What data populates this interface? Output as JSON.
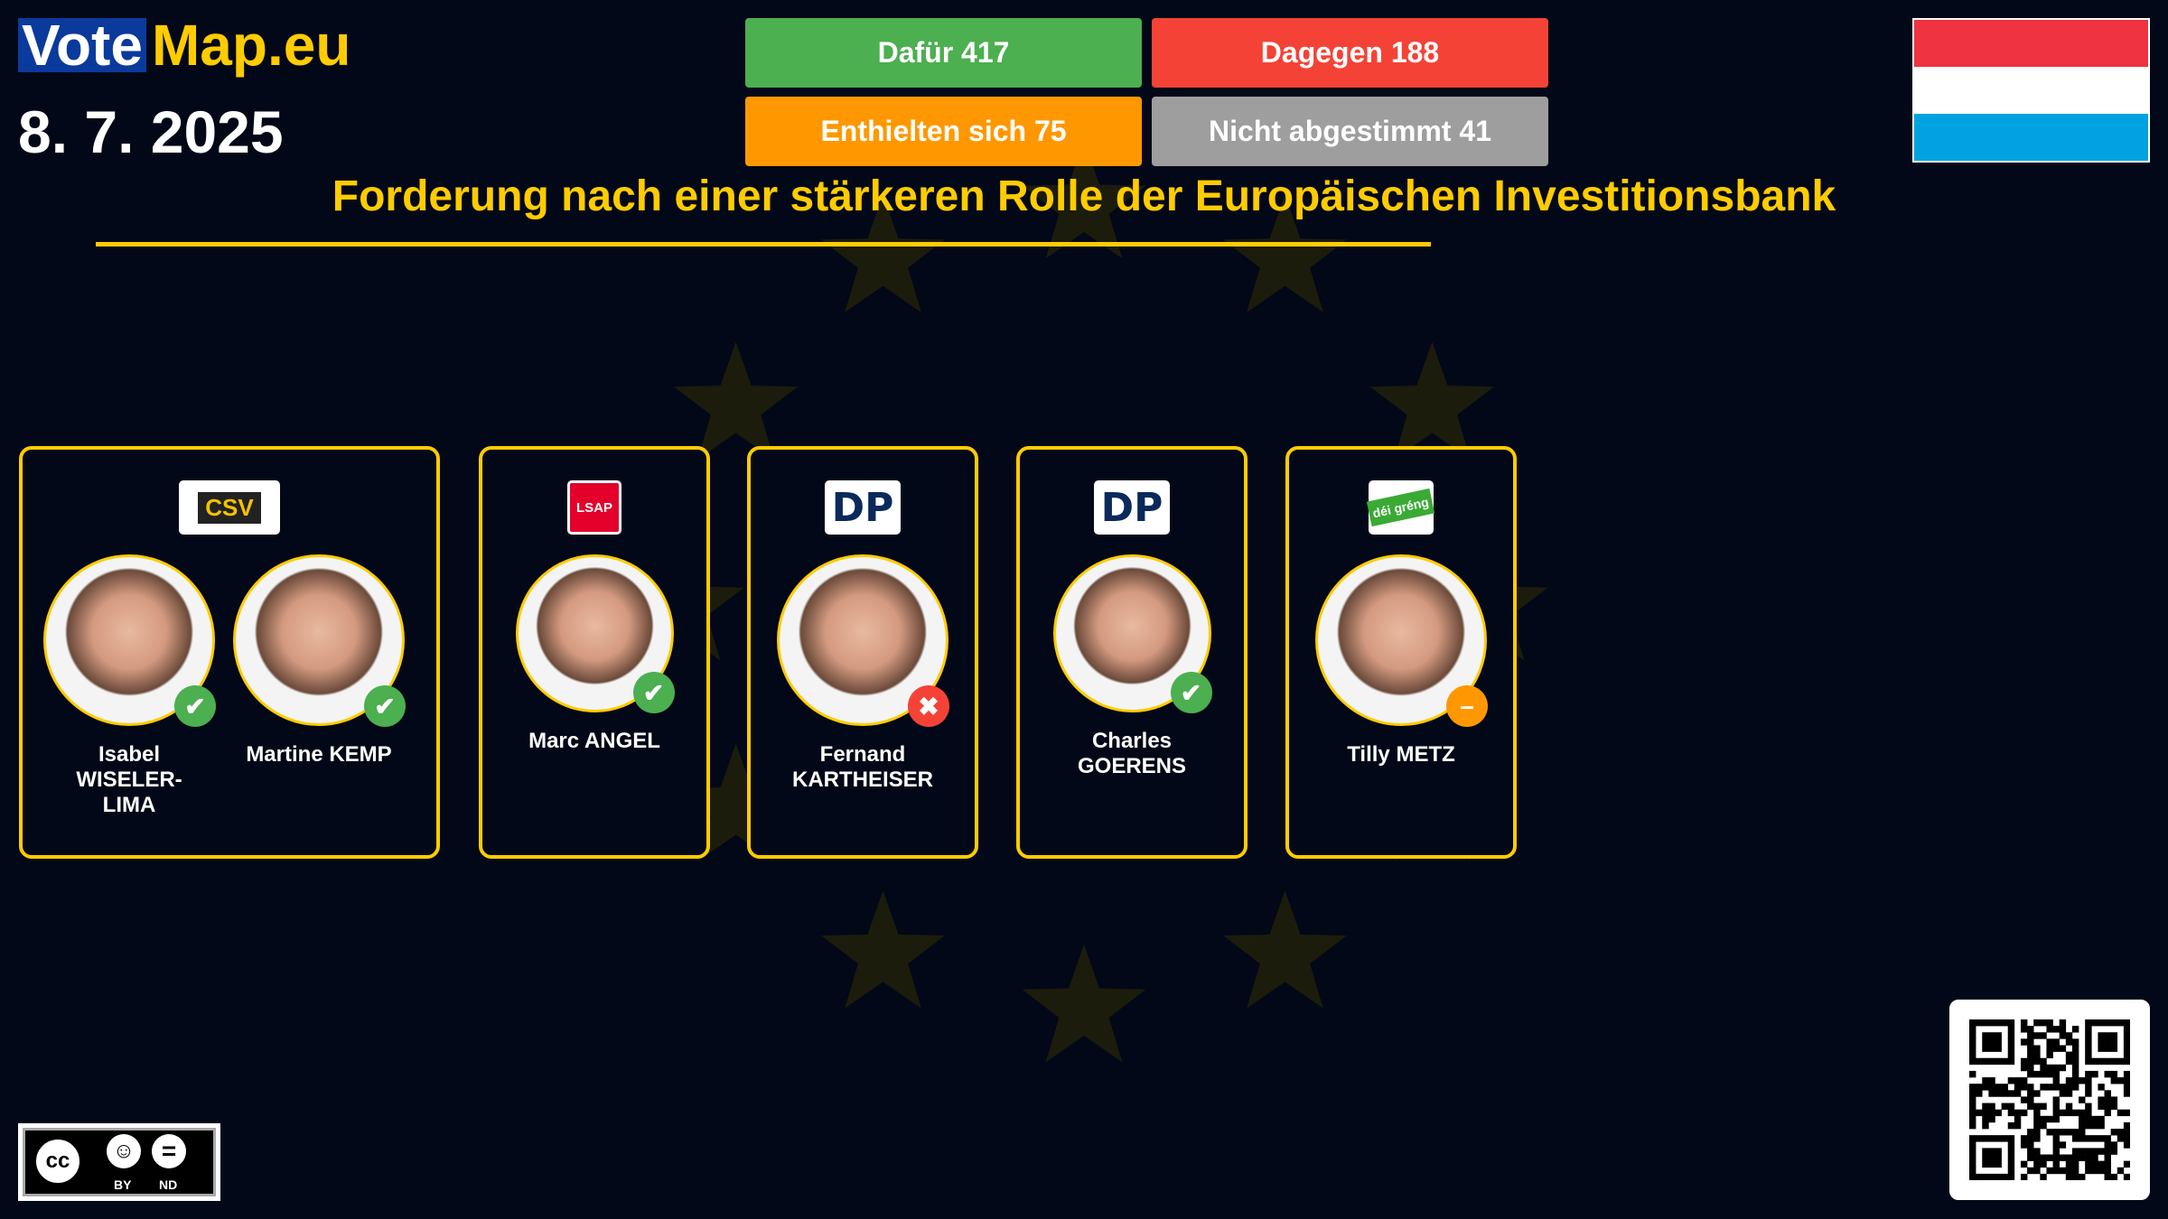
{
  "brand": {
    "vote": "Vote",
    "map": "Map.eu"
  },
  "date": "8. 7. 2025",
  "results": {
    "for": {
      "label": "Dafür 417",
      "color": "#4caf50"
    },
    "against": {
      "label": "Dagegen 188",
      "color": "#f44336"
    },
    "abstain": {
      "label": "Enthielten sich 75",
      "color": "#ff9800"
    },
    "absent": {
      "label": "Nicht abgestimmt 41",
      "color": "#9e9e9e"
    }
  },
  "title": "Forderung nach einer stärkeren Rolle der Europäischen Investitionsbank",
  "country_flag": {
    "country": "Luxembourg",
    "colors": [
      "#ef3340",
      "#ffffff",
      "#00a3e0"
    ]
  },
  "groups": [
    {
      "party": "CSV",
      "members": [
        {
          "name": "Isabel WISELER-LIMA",
          "vote": "for"
        },
        {
          "name": "Martine KEMP",
          "vote": "for"
        }
      ]
    },
    {
      "party": "LSAP",
      "members": [
        {
          "name": "Marc ANGEL",
          "vote": "for"
        }
      ]
    },
    {
      "party": "DP",
      "members": [
        {
          "name": "Fernand KARTHEISER",
          "vote": "against"
        }
      ]
    },
    {
      "party": "DP",
      "members": [
        {
          "name": "Charles GOERENS",
          "vote": "for"
        }
      ]
    },
    {
      "party": "déi gréng",
      "members": [
        {
          "name": "Tilly METZ",
          "vote": "abstain"
        }
      ]
    }
  ],
  "icons": {
    "for": "check-icon",
    "against": "cross-icon",
    "abstain": "minus-icon"
  },
  "license": {
    "label_by": "BY",
    "label_nd": "ND"
  }
}
